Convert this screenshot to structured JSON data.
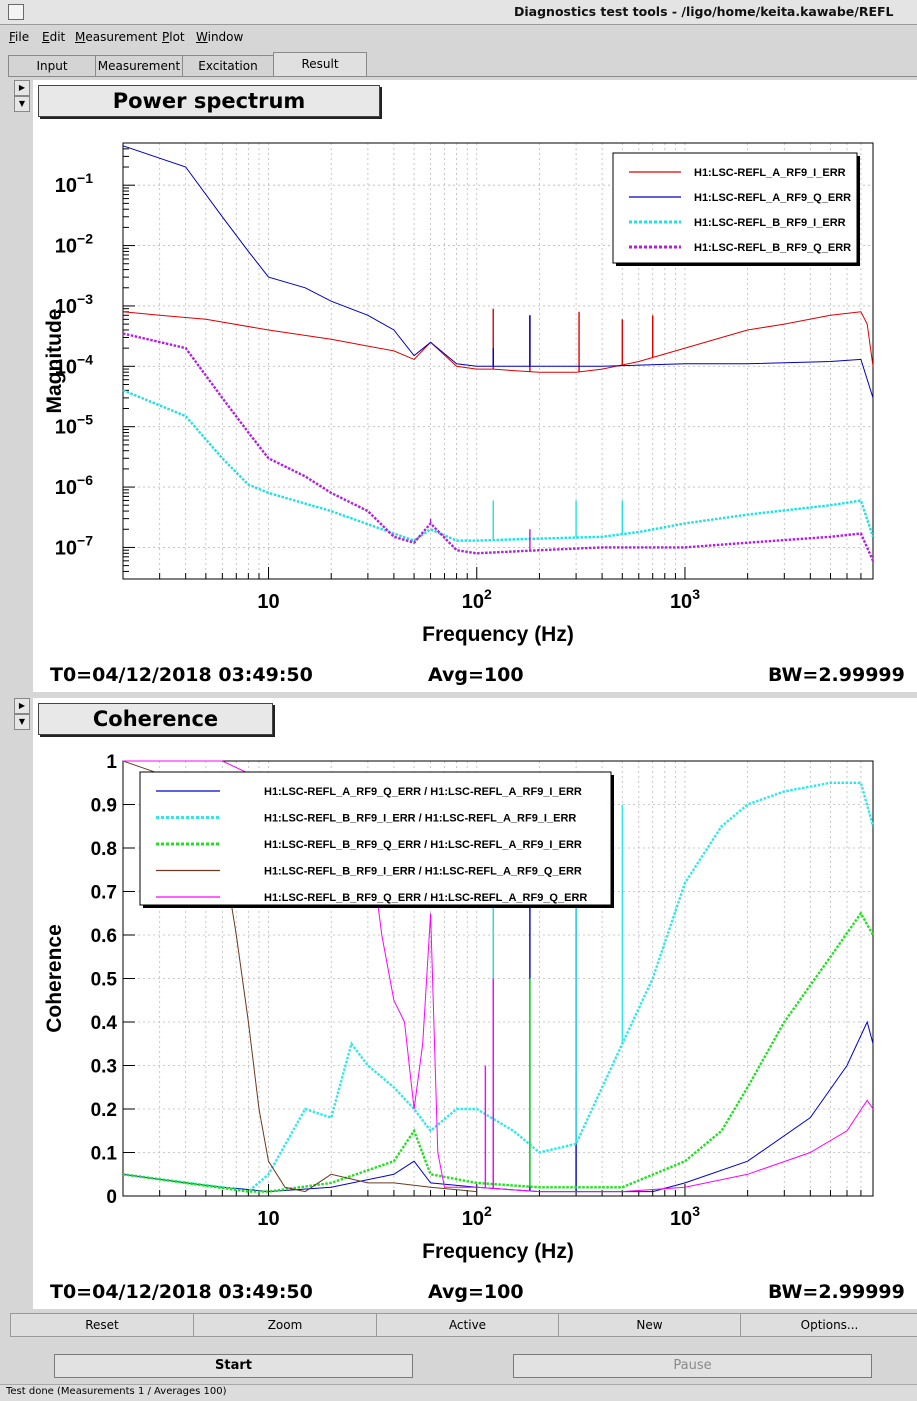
{
  "window": {
    "title": "Diagnostics test tools - /ligo/home/keita.kawabe/REFL"
  },
  "menu": [
    "File",
    "Edit",
    "Measurement",
    "Plot",
    "Window"
  ],
  "tabs": [
    "Input",
    "Measurement",
    "Excitation",
    "Result"
  ],
  "active_tab": "Result",
  "pads": [
    {
      "title": "Power spectrum",
      "t0": "T0=04/12/2018 03:49:50",
      "avg": "Avg=100",
      "bw": "BW=2.99999"
    },
    {
      "title": "Coherence",
      "t0": "T0=04/12/2018 03:49:50",
      "avg": "Avg=100",
      "bw": "BW=2.99999"
    }
  ],
  "bottom_buttons": [
    "Reset",
    "Zoom",
    "Active",
    "New",
    "Options..."
  ],
  "start_label": "Start",
  "pause_label": "Pause",
  "status": "Test done (Measurements 1 / Averages 100)",
  "chart_data": [
    {
      "type": "line",
      "title": "Power spectrum",
      "xlabel": "Frequency (Hz)",
      "ylabel": "Magnitude",
      "x_scale": "log",
      "y_scale": "log",
      "xlim": [
        2,
        8000
      ],
      "ylim": [
        3e-08,
        0.5
      ],
      "x_ticks": [
        {
          "v": 10,
          "label": "10",
          "exp": ""
        },
        {
          "v": 100,
          "label": "10",
          "exp": "2"
        },
        {
          "v": 1000,
          "label": "10",
          "exp": "3"
        }
      ],
      "y_ticks": [
        {
          "v": 1e-07,
          "label": "10",
          "exp": "−7"
        },
        {
          "v": 1e-06,
          "label": "10",
          "exp": "−6"
        },
        {
          "v": 1e-05,
          "label": "10",
          "exp": "−5"
        },
        {
          "v": 0.0001,
          "label": "10",
          "exp": "−4"
        },
        {
          "v": 0.001,
          "label": "10",
          "exp": "−3"
        },
        {
          "v": 0.01,
          "label": "10",
          "exp": "−2"
        },
        {
          "v": 0.1,
          "label": "10",
          "exp": "−1"
        }
      ],
      "grid": true,
      "legend_position": "top-right",
      "series": [
        {
          "name": "H1:LSC-REFL_A_RF9_I_ERR",
          "color": "#e00000",
          "dash": "solid",
          "x": [
            2,
            3,
            5,
            10,
            20,
            40,
            50,
            60,
            80,
            100,
            120,
            150,
            200,
            300,
            400,
            600,
            800,
            1000,
            1500,
            2000,
            3000,
            5000,
            7000,
            7500,
            8000
          ],
          "y": [
            0.0008,
            0.0007,
            0.0006,
            0.0004,
            0.00028,
            0.00018,
            0.00013,
            0.00025,
            0.0001,
            9e-05,
            9e-05,
            8.5e-05,
            8e-05,
            8e-05,
            9e-05,
            0.00012,
            0.00016,
            0.0002,
            0.0003,
            0.0004,
            0.0005,
            0.0007,
            0.0008,
            0.0005,
            0.0001
          ],
          "peaks": [
            [
              120,
              0.0009
            ],
            [
              180,
              0.0007
            ],
            [
              310,
              0.0008
            ],
            [
              500,
              0.0006
            ],
            [
              700,
              0.0007
            ]
          ]
        },
        {
          "name": "H1:LSC-REFL_A_RF9_Q_ERR",
          "color": "#0000c0",
          "dash": "solid",
          "x": [
            2,
            4,
            6,
            8,
            10,
            15,
            20,
            30,
            40,
            50,
            60,
            80,
            100,
            200,
            400,
            1000,
            2000,
            5000,
            7000,
            8000
          ],
          "y": [
            0.45,
            0.2,
            0.03,
            0.008,
            0.003,
            0.002,
            0.0012,
            0.0007,
            0.0004,
            0.00015,
            0.00025,
            0.00011,
            0.0001,
            0.0001,
            0.0001,
            0.00011,
            0.00011,
            0.00012,
            0.00013,
            3e-05
          ],
          "peaks": [
            [
              120,
              0.0002
            ],
            [
              180,
              0.0007
            ]
          ]
        },
        {
          "name": "H1:LSC-REFL_B_RF9_I_ERR",
          "color": "#20e0e0",
          "dash": "dotted",
          "x": [
            2,
            4,
            6,
            8,
            10,
            20,
            40,
            50,
            60,
            80,
            100,
            200,
            400,
            600,
            1000,
            2000,
            5000,
            7000,
            8000
          ],
          "y": [
            4e-05,
            1.5e-05,
            3e-06,
            1.1e-06,
            8e-07,
            4e-07,
            1.7e-07,
            1.3e-07,
            2e-07,
            1.3e-07,
            1.3e-07,
            1.4e-07,
            1.5e-07,
            1.8e-07,
            2.5e-07,
            3.5e-07,
            5e-07,
            6e-07,
            1.5e-07
          ],
          "peaks": [
            [
              120,
              6e-07
            ],
            [
              300,
              6e-07
            ],
            [
              500,
              6e-07
            ]
          ]
        },
        {
          "name": "H1:LSC-REFL_B_RF9_Q_ERR",
          "color": "#b020e0",
          "dash": "dotted",
          "x": [
            2,
            4,
            6,
            8,
            10,
            15,
            20,
            30,
            40,
            50,
            60,
            80,
            100,
            200,
            400,
            1000,
            2000,
            5000,
            7000,
            8000
          ],
          "y": [
            0.00035,
            0.0002,
            3e-05,
            8e-06,
            3e-06,
            1.5e-06,
            8e-07,
            4e-07,
            1.5e-07,
            1.2e-07,
            2.5e-07,
            9e-08,
            8e-08,
            9e-08,
            1e-07,
            1e-07,
            1.2e-07,
            1.5e-07,
            1.7e-07,
            6e-08
          ],
          "peaks": [
            [
              60,
              3e-07
            ],
            [
              180,
              2e-07
            ]
          ]
        }
      ]
    },
    {
      "type": "line",
      "title": "Coherence",
      "xlabel": "Frequency (Hz)",
      "ylabel": "Coherence",
      "x_scale": "log",
      "y_scale": "linear",
      "xlim": [
        2,
        8000
      ],
      "ylim": [
        0,
        1
      ],
      "x_ticks": [
        {
          "v": 10,
          "label": "10",
          "exp": ""
        },
        {
          "v": 100,
          "label": "10",
          "exp": "2"
        },
        {
          "v": 1000,
          "label": "10",
          "exp": "3"
        }
      ],
      "y_ticks": [
        {
          "v": 0,
          "label": "0"
        },
        {
          "v": 0.1,
          "label": "0.1"
        },
        {
          "v": 0.2,
          "label": "0.2"
        },
        {
          "v": 0.3,
          "label": "0.3"
        },
        {
          "v": 0.4,
          "label": "0.4"
        },
        {
          "v": 0.5,
          "label": "0.5"
        },
        {
          "v": 0.6,
          "label": "0.6"
        },
        {
          "v": 0.7,
          "label": "0.7"
        },
        {
          "v": 0.8,
          "label": "0.8"
        },
        {
          "v": 0.9,
          "label": "0.9"
        },
        {
          "v": 1,
          "label": "1"
        }
      ],
      "grid": true,
      "legend_position": "top-left",
      "series": [
        {
          "name": "H1:LSC-REFL_A_RF9_Q_ERR / H1:LSC-REFL_A_RF9_I_ERR",
          "color": "#0000d0",
          "dash": "solid",
          "x": [
            2,
            4,
            6,
            8,
            10,
            20,
            40,
            50,
            60,
            100,
            200,
            400,
            700,
            1000,
            2000,
            4000,
            6000,
            7500,
            8000
          ],
          "y": [
            0.05,
            0.03,
            0.02,
            0.015,
            0.01,
            0.02,
            0.05,
            0.08,
            0.03,
            0.02,
            0.01,
            0.01,
            0.01,
            0.03,
            0.08,
            0.18,
            0.3,
            0.4,
            0.35
          ],
          "peaks": [
            [
              120,
              0.95
            ],
            [
              180,
              0.9
            ],
            [
              300,
              0.9
            ]
          ]
        },
        {
          "name": "H1:LSC-REFL_B_RF9_I_ERR / H1:LSC-REFL_A_RF9_I_ERR",
          "color": "#30e8e8",
          "dash": "dotted",
          "x": [
            2,
            6,
            8,
            10,
            15,
            20,
            25,
            30,
            40,
            50,
            60,
            80,
            100,
            150,
            200,
            300,
            500,
            700,
            1000,
            1500,
            2000,
            3000,
            5000,
            7000,
            8000
          ],
          "y": [
            0.05,
            0.02,
            0.01,
            0.05,
            0.2,
            0.18,
            0.35,
            0.3,
            0.25,
            0.2,
            0.15,
            0.2,
            0.2,
            0.15,
            0.1,
            0.12,
            0.35,
            0.5,
            0.72,
            0.85,
            0.9,
            0.93,
            0.95,
            0.95,
            0.85
          ],
          "peaks": [
            [
              120,
              0.9
            ],
            [
              300,
              0.9
            ],
            [
              500,
              0.9
            ]
          ]
        },
        {
          "name": "H1:LSC-REFL_B_RF9_Q_ERR / H1:LSC-REFL_A_RF9_I_ERR",
          "color": "#20e020",
          "dash": "dotted",
          "x": [
            2,
            8,
            10,
            20,
            40,
            50,
            60,
            100,
            200,
            500,
            1000,
            1500,
            2000,
            3000,
            5000,
            7000,
            8000
          ],
          "y": [
            0.05,
            0.01,
            0.01,
            0.03,
            0.08,
            0.15,
            0.05,
            0.03,
            0.02,
            0.02,
            0.08,
            0.15,
            0.25,
            0.4,
            0.55,
            0.65,
            0.6
          ],
          "peaks": [
            [
              120,
              0.4
            ],
            [
              180,
              0.5
            ]
          ]
        },
        {
          "name": "H1:LSC-REFL_B_RF9_I_ERR / H1:LSC-REFL_A_RF9_Q_ERR",
          "color": "#6b3a20",
          "dash": "solid",
          "x": [
            2,
            4,
            6,
            7,
            8,
            9,
            10,
            12,
            15,
            20,
            30,
            40,
            60,
            100
          ],
          "y": [
            1,
            0.95,
            0.8,
            0.6,
            0.4,
            0.2,
            0.08,
            0.02,
            0.01,
            0.05,
            0.03,
            0.03,
            0.02,
            0.01
          ]
        },
        {
          "name": "H1:LSC-REFL_B_RF9_Q_ERR / H1:LSC-REFL_A_RF9_Q_ERR",
          "color": "#ff00ff",
          "dash": "solid",
          "x": [
            2,
            6,
            10,
            20,
            30,
            35,
            40,
            45,
            50,
            55,
            60,
            65,
            70,
            80,
            100,
            200,
            500,
            1000,
            2000,
            4000,
            6000,
            7500,
            8000
          ],
          "y": [
            1,
            1,
            0.95,
            0.9,
            0.85,
            0.6,
            0.45,
            0.4,
            0.2,
            0.35,
            0.65,
            0.1,
            0.02,
            0.02,
            0.02,
            0.01,
            0.01,
            0.02,
            0.05,
            0.1,
            0.15,
            0.22,
            0.2
          ],
          "peaks": [
            [
              110,
              0.3
            ],
            [
              120,
              0.5
            ]
          ]
        }
      ]
    }
  ]
}
